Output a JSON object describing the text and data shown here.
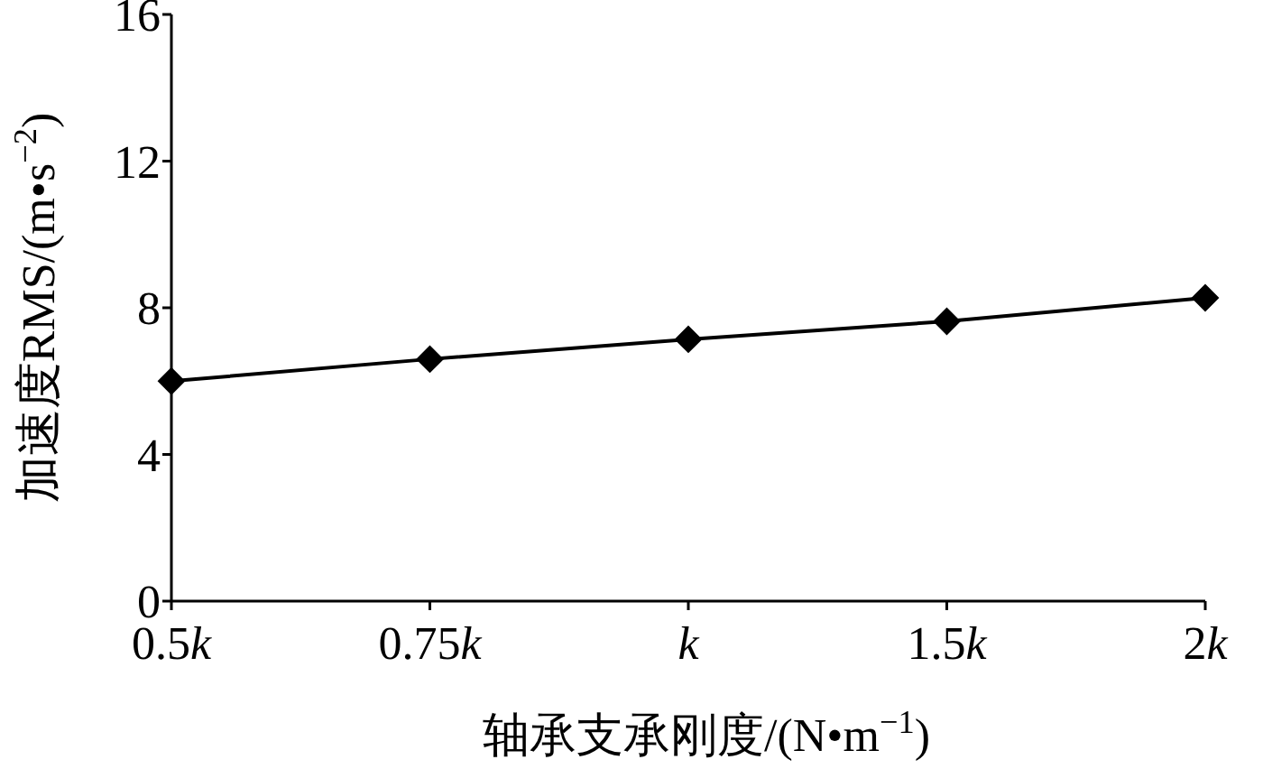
{
  "chart_data": {
    "type": "line",
    "xlabel": "轴承支承刚度/(N•m$^{−1}$)",
    "ylabel": "加速度RMS/(m•s$^{−2}$)",
    "categories": [
      "0.5k",
      "0.75k",
      "k",
      "1.5k",
      "2k"
    ],
    "series": [
      {
        "color": "#000000",
        "values": [
          6.0,
          6.6,
          7.14,
          7.63,
          8.27
        ]
      }
    ],
    "ylim": [
      0,
      16
    ],
    "yticks": [
      0,
      4,
      8,
      12,
      16
    ],
    "marker": "diamond",
    "line_style": "solid",
    "grid": false
  }
}
